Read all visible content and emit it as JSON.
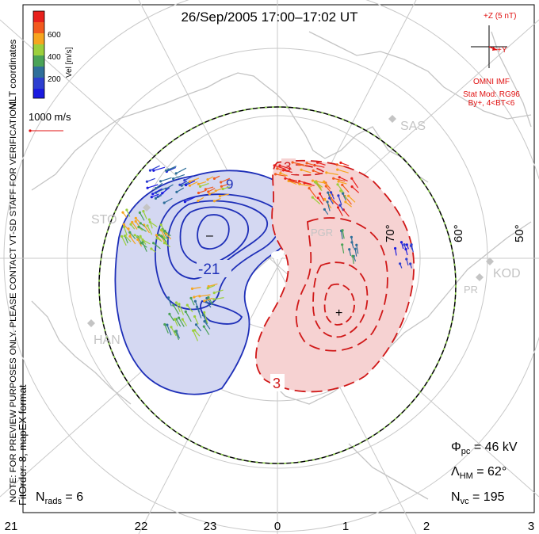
{
  "title": "26/Sep/2005 17:00–17:02 UT",
  "colorbar": {
    "unit_label": "Vel [m/s]",
    "tick_labels": [
      "600",
      "400",
      "200"
    ],
    "colors": [
      "#e8201c",
      "#f25a1e",
      "#f6a51f",
      "#9ccf3c",
      "#4aa357",
      "#2f6f9a",
      "#2d3fd0",
      "#1a1ae0"
    ]
  },
  "coordinates_label": "MLT coordinates",
  "notice": "NOTE: FOR PREVIEW PURPOSES ONLY. PLEASE CONTACT VT-SD STAFF FOR VERIFICATION.",
  "fit_label": "FitOrder: 8, mapEX format",
  "scale_vector_label": "1000 m/s",
  "imf": {
    "z_label": "+Z (5 nT)",
    "y_label": "+Y",
    "source": "OMNI IMF",
    "model": "Stat Mod: RG96",
    "model_condition": "By+, 4<BT<6"
  },
  "stations": [
    "SAS",
    "STO",
    "KOD",
    "HAN",
    "PR",
    "PGR"
  ],
  "contour_labels": [
    "9",
    "-21",
    "3",
    "3"
  ],
  "lat_labels": [
    "70°",
    "60°",
    "50°"
  ],
  "extremum_markers": {
    "min": "–",
    "max": "+"
  },
  "stats": {
    "phi_pc": {
      "symbol": "Φ",
      "sub": "pc",
      "value": " = 46 kV"
    },
    "lambda_hm": {
      "symbol": "Λ",
      "sub": "HM",
      "value": " = 62°"
    },
    "n_vc": {
      "symbol": "N",
      "sub": "vc",
      "value": " = 195"
    },
    "n_rads": {
      "symbol": "N",
      "sub": "rads",
      "value": " = 6"
    }
  },
  "mlt_ticks": [
    "21",
    "22",
    "23",
    "0",
    "1",
    "2",
    "3"
  ],
  "colors": {
    "negative_cell_fill": "#d4d8f2",
    "negative_contour": "#1e2fb8",
    "positive_cell_fill": "#f6d2d2",
    "positive_contour": "#d01818",
    "grid": "#c8c8c8",
    "coast": "#c4c4c4",
    "hm_boundary_dash": "#8fd14f",
    "annotation_red": "#e01010"
  }
}
